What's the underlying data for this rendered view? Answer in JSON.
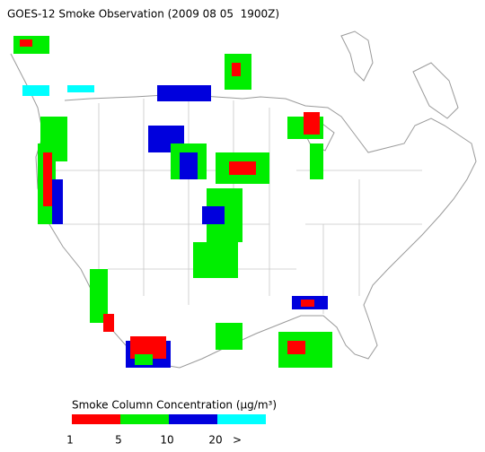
{
  "title": "GOES-12 Smoke Observation (2009 08 05  1900Z)",
  "legend": {
    "label": "Smoke Column Concentration (μg/m³)",
    "colors": [
      "#ff0000",
      "#00ee00",
      "#0000dd",
      "#00ffff"
    ],
    "ticks": [
      1,
      5,
      10,
      20,
      ">"
    ]
  }
}
